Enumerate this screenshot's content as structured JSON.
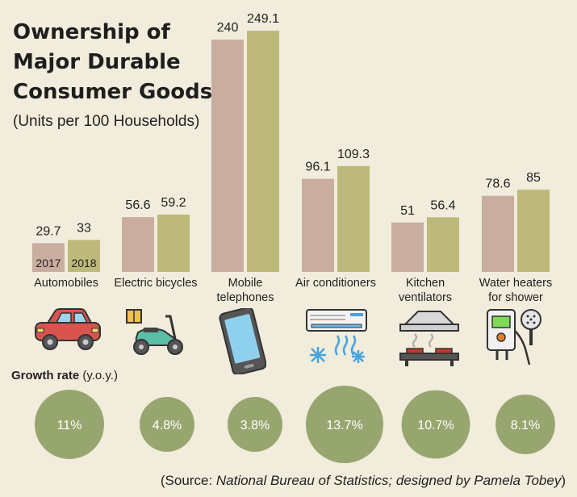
{
  "title_lines": [
    "Ownership of",
    "Major Durable",
    "Consumer Goods"
  ],
  "subtitle": "(Units per 100 Households)",
  "legend_years": [
    "2017",
    "2018"
  ],
  "colors": {
    "bar_2017": "#c9ad9e",
    "bar_2018": "#bdb97a",
    "circle": "#97a66f",
    "background": "#f1ecdb"
  },
  "chart_data": {
    "type": "bar",
    "title": "Ownership of Major Durable Consumer Goods",
    "subtitle": "(Units per 100 Households)",
    "categories": [
      "Automobiles",
      "Electric bicycles",
      "Mobile telephones",
      "Air conditioners",
      "Kitchen ventilators",
      "Water heaters for shower"
    ],
    "category_label_lines": [
      [
        "Automobiles"
      ],
      [
        "Electric bicycles"
      ],
      [
        "Mobile",
        "telephones"
      ],
      [
        "Air conditioners"
      ],
      [
        "Kitchen",
        "ventilators"
      ],
      [
        "Water heaters",
        "for shower"
      ]
    ],
    "series": [
      {
        "name": "2017",
        "values": [
          29.7,
          56.6,
          240,
          96.1,
          51,
          78.6
        ],
        "labels": [
          "29.7",
          "56.6",
          "240",
          "96.1",
          "51",
          "78.6"
        ]
      },
      {
        "name": "2018",
        "values": [
          33,
          59.2,
          249.1,
          109.3,
          56.4,
          85
        ],
        "labels": [
          "33",
          "59.2",
          "249.1",
          "109.3",
          "56.4",
          "85"
        ]
      }
    ],
    "growth_rate": {
      "label": "Growth rate",
      "label_suffix": "(y.o.y.)",
      "values": [
        11,
        4.8,
        3.8,
        13.7,
        10.7,
        8.1
      ],
      "labels": [
        "11%",
        "4.8%",
        "3.8%",
        "13.7%",
        "10.7%",
        "8.1%"
      ]
    },
    "ylim": [
      0,
      260
    ]
  },
  "icons": [
    "car-icon",
    "electric-bicycle-icon",
    "mobile-phone-icon",
    "air-conditioner-icon",
    "kitchen-ventilator-icon",
    "water-heater-icon"
  ],
  "source": {
    "prefix": "(Source: ",
    "org": "National Bureau of Statistics; designed by Pamela Tobey",
    "suffix": ")"
  }
}
